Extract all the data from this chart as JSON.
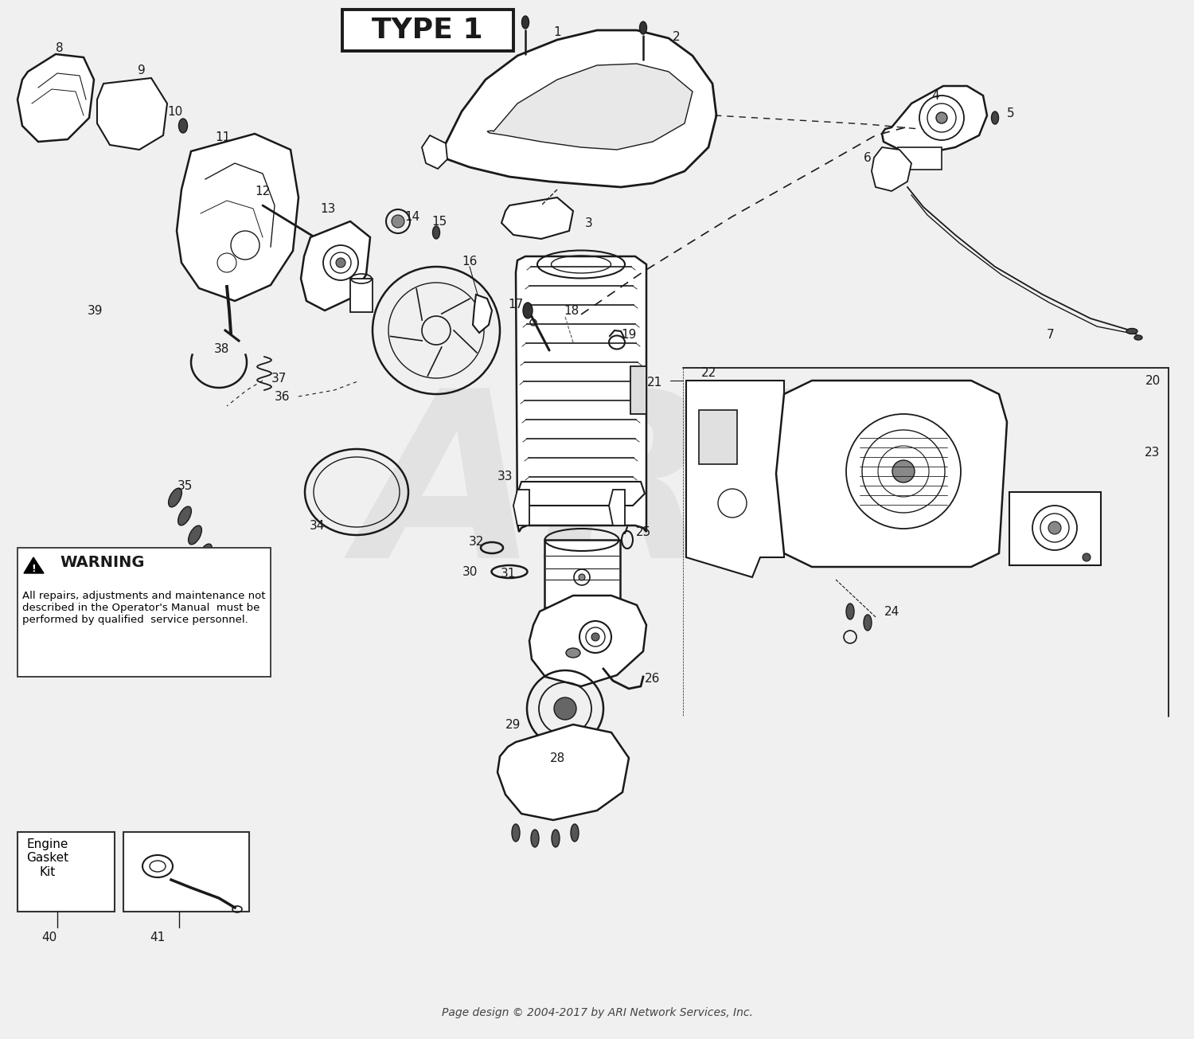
{
  "title": "TYPE 1",
  "bg_color": "#f0f0f0",
  "line_color": "#1a1a1a",
  "text_color": "#1a1a1a",
  "warning_title": "WARNING",
  "warning_text": "All repairs, adjustments and maintenance not\ndescribed in the Operator's Manual  must be\nperformed by qualified  service personnel.",
  "footer": "Page design © 2004-2017 by ARI Network Services, Inc.",
  "engine_gasket_kit_label": "Engine\nGasket\nKit"
}
